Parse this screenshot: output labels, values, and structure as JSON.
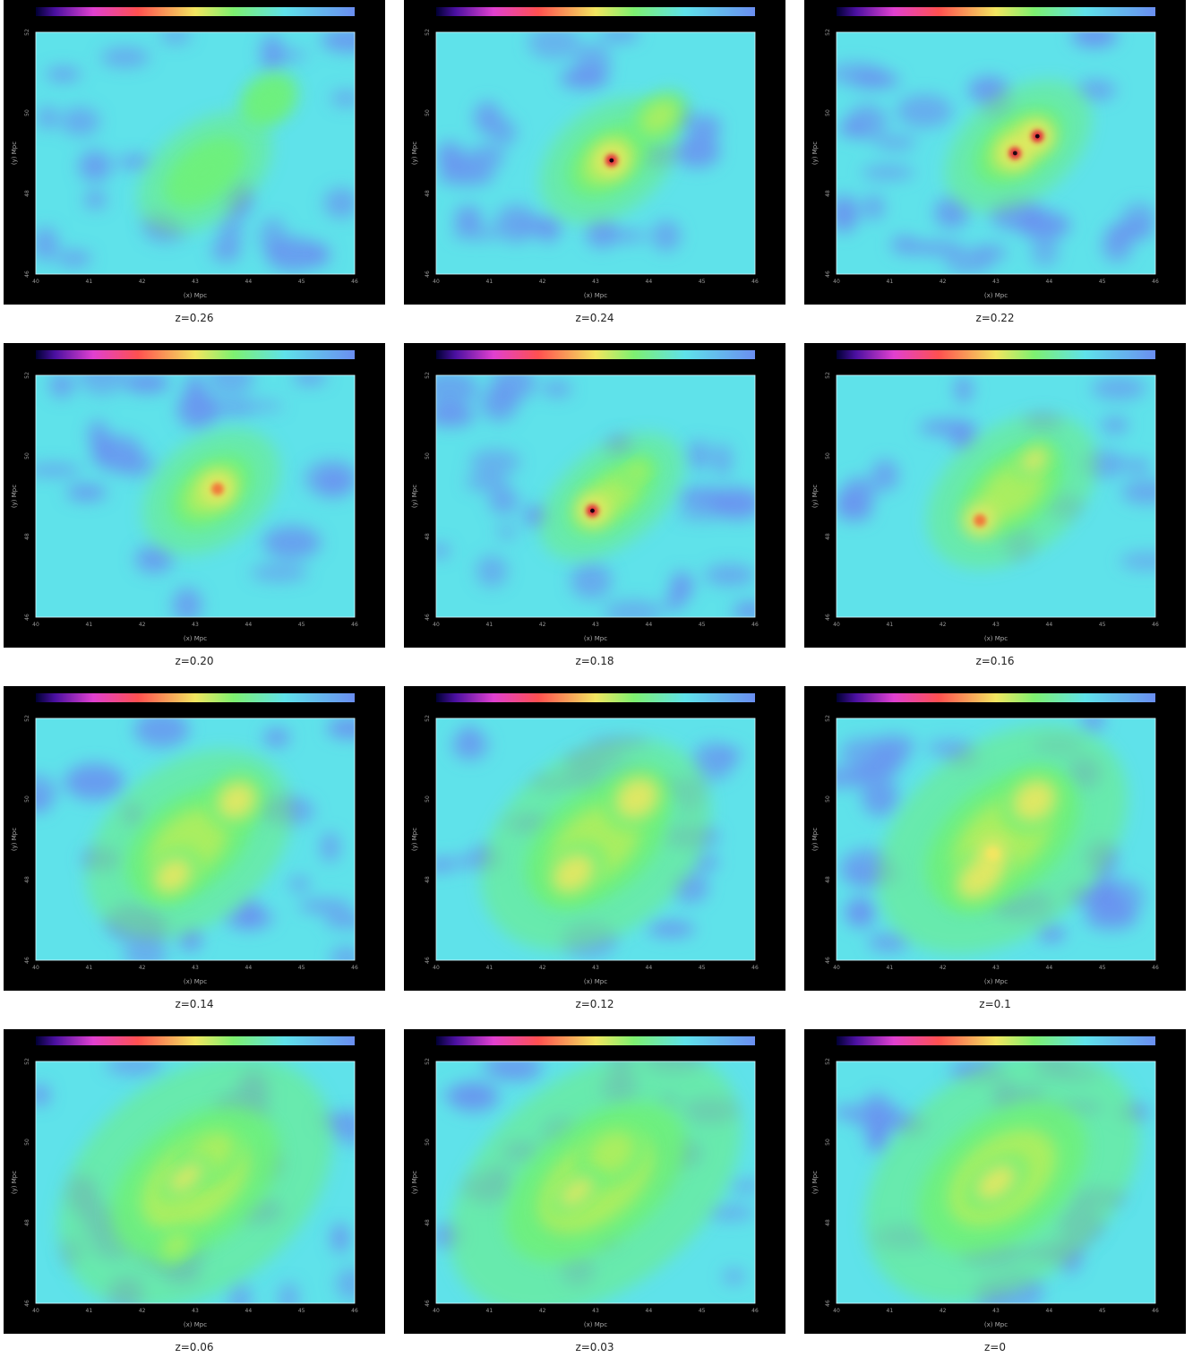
{
  "figure": {
    "x_ticks": [
      "40",
      "41",
      "42",
      "43",
      "44",
      "45",
      "46"
    ],
    "y_ticks": [
      "52",
      "50",
      "48",
      "46"
    ],
    "x_label": "(x) Mpc",
    "y_label": "(y) Mpc",
    "colors": {
      "background": "#5fe2ea",
      "void": "#6a8ef0",
      "filament": "#6ef07c",
      "halo": "#f2e660",
      "core": "#e2283a",
      "center": "#1a0010"
    },
    "panels": [
      {
        "label": "z=0.26",
        "features": [
          {
            "type": "blob",
            "x": 0.53,
            "y": 0.58,
            "rx": 0.12,
            "ry": 0.09,
            "level": 0.35
          },
          {
            "type": "blob",
            "x": 0.73,
            "y": 0.28,
            "rx": 0.08,
            "ry": 0.08,
            "level": 0.35
          }
        ]
      },
      {
        "label": "z=0.24",
        "features": [
          {
            "type": "blob",
            "x": 0.54,
            "y": 0.53,
            "rx": 0.12,
            "ry": 0.1,
            "level": 0.5
          },
          {
            "type": "peak",
            "x": 0.55,
            "y": 0.53,
            "level": 1.0
          },
          {
            "type": "blob",
            "x": 0.7,
            "y": 0.35,
            "rx": 0.08,
            "ry": 0.07,
            "level": 0.55
          }
        ]
      },
      {
        "label": "z=0.22",
        "features": [
          {
            "type": "blob",
            "x": 0.57,
            "y": 0.47,
            "rx": 0.13,
            "ry": 0.1,
            "level": 0.45
          },
          {
            "type": "peak",
            "x": 0.56,
            "y": 0.5,
            "level": 1.0
          },
          {
            "type": "peak",
            "x": 0.63,
            "y": 0.43,
            "level": 1.0
          }
        ]
      },
      {
        "label": "z=0.20",
        "features": [
          {
            "type": "blob",
            "x": 0.55,
            "y": 0.48,
            "rx": 0.12,
            "ry": 0.1,
            "level": 0.45
          },
          {
            "type": "peak",
            "x": 0.57,
            "y": 0.47,
            "level": 0.8
          }
        ]
      },
      {
        "label": "z=0.18",
        "features": [
          {
            "type": "blob",
            "x": 0.55,
            "y": 0.5,
            "rx": 0.13,
            "ry": 0.09,
            "level": 0.45
          },
          {
            "type": "blob",
            "x": 0.63,
            "y": 0.4,
            "rx": 0.05,
            "ry": 0.04,
            "level": 0.55
          },
          {
            "type": "peak",
            "x": 0.49,
            "y": 0.56,
            "level": 1.0
          }
        ]
      },
      {
        "label": "z=0.16",
        "features": [
          {
            "type": "blob",
            "x": 0.55,
            "y": 0.48,
            "rx": 0.15,
            "ry": 0.12,
            "level": 0.5
          },
          {
            "type": "blob",
            "x": 0.62,
            "y": 0.35,
            "rx": 0.06,
            "ry": 0.05,
            "level": 0.6
          },
          {
            "type": "peak",
            "x": 0.45,
            "y": 0.6,
            "level": 0.9
          }
        ]
      },
      {
        "label": "z=0.14",
        "features": [
          {
            "type": "blob",
            "x": 0.48,
            "y": 0.52,
            "rx": 0.18,
            "ry": 0.15,
            "level": 0.5
          },
          {
            "type": "blob",
            "x": 0.63,
            "y": 0.34,
            "rx": 0.08,
            "ry": 0.09,
            "level": 0.7
          },
          {
            "type": "blob",
            "x": 0.43,
            "y": 0.65,
            "rx": 0.08,
            "ry": 0.08,
            "level": 0.65
          }
        ]
      },
      {
        "label": "z=0.12",
        "features": [
          {
            "type": "blob",
            "x": 0.5,
            "y": 0.52,
            "rx": 0.2,
            "ry": 0.17,
            "level": 0.5
          },
          {
            "type": "blob",
            "x": 0.63,
            "y": 0.33,
            "rx": 0.09,
            "ry": 0.1,
            "level": 0.7
          },
          {
            "type": "blob",
            "x": 0.43,
            "y": 0.64,
            "rx": 0.09,
            "ry": 0.09,
            "level": 0.6
          }
        ]
      },
      {
        "label": "z=0.1",
        "features": [
          {
            "type": "blob",
            "x": 0.52,
            "y": 0.5,
            "rx": 0.22,
            "ry": 0.18,
            "level": 0.5
          },
          {
            "type": "blob",
            "x": 0.62,
            "y": 0.34,
            "rx": 0.09,
            "ry": 0.1,
            "level": 0.65
          },
          {
            "type": "blob",
            "x": 0.45,
            "y": 0.66,
            "rx": 0.1,
            "ry": 0.09,
            "level": 0.6
          },
          {
            "type": "peak",
            "x": 0.49,
            "y": 0.56,
            "level": 0.7
          }
        ]
      },
      {
        "label": "z=0.06",
        "features": [
          {
            "type": "blob",
            "x": 0.5,
            "y": 0.5,
            "rx": 0.24,
            "ry": 0.2,
            "level": 0.5
          },
          {
            "type": "blob",
            "x": 0.55,
            "y": 0.38,
            "rx": 0.1,
            "ry": 0.09,
            "level": 0.55
          },
          {
            "type": "blob",
            "x": 0.47,
            "y": 0.48,
            "rx": 0.08,
            "ry": 0.05,
            "level": 0.7
          },
          {
            "type": "blob",
            "x": 0.44,
            "y": 0.76,
            "rx": 0.06,
            "ry": 0.05,
            "level": 0.55
          }
        ]
      },
      {
        "label": "z=0.03",
        "features": [
          {
            "type": "blob",
            "x": 0.5,
            "y": 0.5,
            "rx": 0.26,
            "ry": 0.2,
            "level": 0.5
          },
          {
            "type": "blob",
            "x": 0.55,
            "y": 0.38,
            "rx": 0.1,
            "ry": 0.1,
            "level": 0.55
          },
          {
            "type": "blob",
            "x": 0.44,
            "y": 0.54,
            "rx": 0.08,
            "ry": 0.05,
            "level": 0.65
          }
        ]
      },
      {
        "label": "z=0",
        "features": [
          {
            "type": "blob",
            "x": 0.52,
            "y": 0.48,
            "rx": 0.24,
            "ry": 0.2,
            "level": 0.45
          },
          {
            "type": "blob",
            "x": 0.5,
            "y": 0.5,
            "rx": 0.09,
            "ry": 0.07,
            "level": 0.62
          }
        ]
      }
    ]
  }
}
